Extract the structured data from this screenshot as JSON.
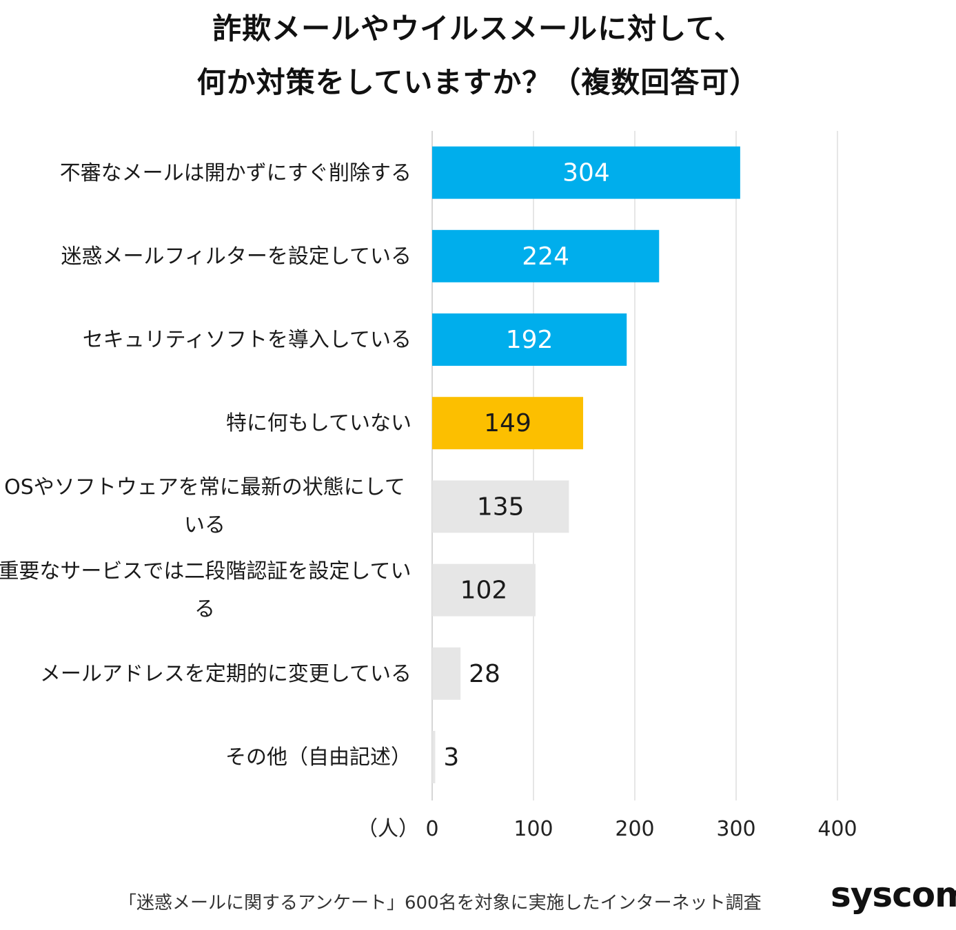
{
  "header": {
    "title_line1": "詐欺メールやウイルスメールに対して、",
    "title_line2": "何か対策をしていますか？（複数回答可）"
  },
  "chart_data": {
    "type": "bar",
    "orientation": "horizontal",
    "title": "詐欺メールやウイルスメールに対して、何か対策をしていますか？（複数回答可）",
    "categories": [
      "不審なメールは開かずにすぐ削除する",
      "迷惑メールフィルターを設定している",
      "セキュリティソフトを導入している",
      "特に何もしていない",
      "OSやソフトウェアを常に最新の状態にしている",
      "重要なサービスでは二段階認証を設定している",
      "メールアドレスを定期的に変更している",
      "その他（自由記述）"
    ],
    "values": [
      304,
      224,
      192,
      149,
      135,
      102,
      28,
      3
    ],
    "value_labels": [
      "304",
      "224",
      "192",
      "149",
      "135",
      "102",
      "28",
      "3"
    ],
    "bar_colors": [
      "#00aeec",
      "#00aeec",
      "#00aeec",
      "#fcbf00",
      "#e6e6e6",
      "#e6e6e6",
      "#e6e6e6",
      "#e6e6e6"
    ],
    "label_colors": [
      "#ffffff",
      "#ffffff",
      "#ffffff",
      "#1a1a1a",
      "#1a1a1a",
      "#1a1a1a",
      "#1a1a1a",
      "#1a1a1a"
    ],
    "xlim": [
      0,
      400
    ],
    "x_ticks": [
      0,
      100,
      200,
      300,
      400
    ],
    "x_tick_labels": [
      "0",
      "100",
      "200",
      "300",
      "400"
    ],
    "xunit": "（人）",
    "grid": true,
    "legend": "none"
  },
  "footer": {
    "source_note": "「迷惑メールに関するアンケート」600名を対象に実施したインターネット調査",
    "brand": "syscom"
  }
}
